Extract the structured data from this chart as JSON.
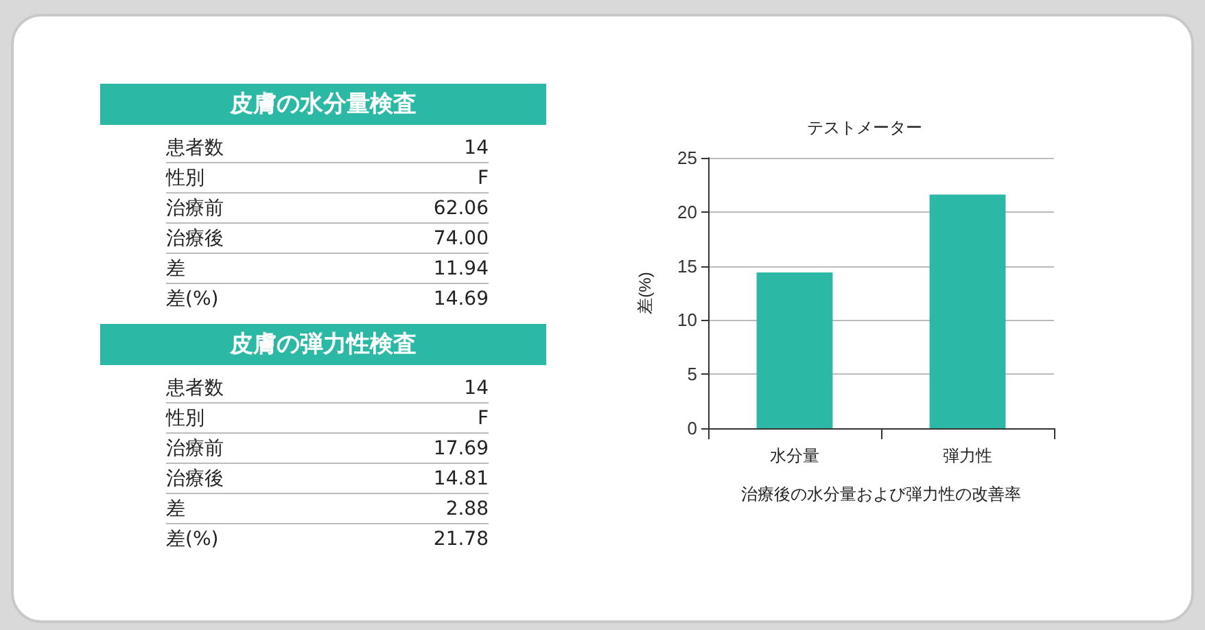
{
  "chart_data": [
    {
      "type": "other",
      "title": "皮膚の水分量検査",
      "annotations": [
        "患者数",
        "14",
        "性別",
        "F",
        "治療前",
        "62.06",
        "治療後",
        "74.00",
        "差",
        "11.94",
        "差(%)",
        "14.69"
      ]
    },
    {
      "type": "other",
      "title": "皮膚の弾力性検査",
      "annotations": [
        "患者数",
        "14",
        "性別",
        "F",
        "治療前",
        "17.69",
        "治療後",
        "14.81",
        "差",
        "2.88",
        "差(%)",
        "21.78"
      ]
    },
    {
      "type": "bar",
      "title": "テストメーター",
      "xlabel": "治療後の水分量および弾力性の改善率",
      "ylabel": "差(%)",
      "categories": [
        "水分量",
        "弾力性"
      ],
      "values": [
        14.4,
        21.6
      ],
      "color": "#2bb8a5",
      "ylim": [
        0,
        25
      ],
      "yticks": [
        0,
        5,
        10,
        15,
        20,
        25
      ],
      "grid": "y"
    }
  ]
}
